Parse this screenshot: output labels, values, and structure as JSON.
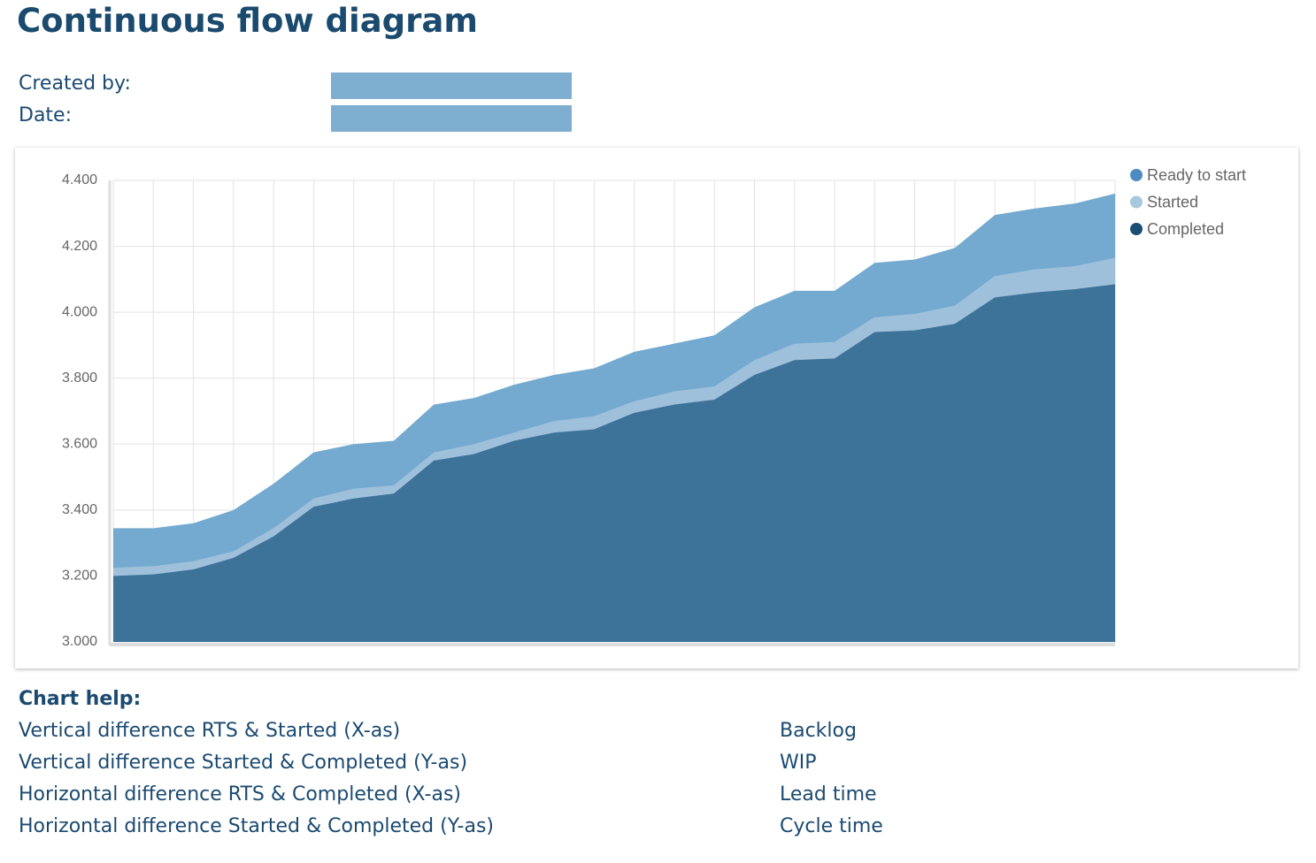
{
  "header": {
    "title": "Continuous flow diagram",
    "created_by_label": "Created by:",
    "date_label": "Date:"
  },
  "chart_data": {
    "type": "area",
    "categories": [
      null,
      null,
      null,
      null,
      null,
      null,
      null,
      null,
      null,
      null,
      null,
      null,
      null,
      null,
      null,
      null,
      null,
      null,
      null,
      null,
      null,
      null,
      null,
      null,
      null,
      null
    ],
    "series": [
      {
        "name": "Ready to start",
        "color": "#74aacf",
        "legend_color": "#4b8dc2",
        "values": [
          3345,
          3345,
          3360,
          3400,
          3480,
          3575,
          3600,
          3610,
          3720,
          3740,
          3780,
          3810,
          3830,
          3880,
          3905,
          3930,
          4015,
          4065,
          4065,
          4150,
          4160,
          4195,
          4295,
          4315,
          4330,
          4360
        ]
      },
      {
        "name": "Started",
        "color": "#9fc0db",
        "legend_color": "#a8c8de",
        "values": [
          3225,
          3230,
          3245,
          3275,
          3345,
          3435,
          3465,
          3475,
          3575,
          3600,
          3635,
          3670,
          3685,
          3730,
          3760,
          3775,
          3855,
          3905,
          3910,
          3985,
          3995,
          4020,
          4110,
          4130,
          4140,
          4165
        ]
      },
      {
        "name": "Completed",
        "color": "#3d7399",
        "legend_color": "#1a4e74",
        "values": [
          3200,
          3205,
          3220,
          3255,
          3320,
          3410,
          3435,
          3450,
          3550,
          3570,
          3610,
          3635,
          3645,
          3695,
          3720,
          3735,
          3810,
          3855,
          3860,
          3940,
          3945,
          3965,
          4045,
          4060,
          4070,
          4085
        ]
      }
    ],
    "ylim": [
      3000,
      4400
    ],
    "yticks": [
      {
        "value": 3000,
        "label": "3.000"
      },
      {
        "value": 3200,
        "label": "3.200"
      },
      {
        "value": 3400,
        "label": "3.400"
      },
      {
        "value": 3600,
        "label": "3.600"
      },
      {
        "value": 3800,
        "label": "3.800"
      },
      {
        "value": 4000,
        "label": "4.000"
      },
      {
        "value": 4200,
        "label": "4.200"
      },
      {
        "value": 4400,
        "label": "4.400"
      }
    ],
    "grid": true,
    "legend": "top-right"
  },
  "help": {
    "title": "Chart help:",
    "rows": [
      [
        "Vertical difference RTS & Started (X-as)",
        "Backlog"
      ],
      [
        "Vertical difference Started & Completed (Y-as)",
        "WIP"
      ],
      [
        "Horizontal difference RTS & Completed (X-as)",
        "Lead time"
      ],
      [
        "Horizontal difference Started & Completed (Y-as)",
        "Cycle time"
      ]
    ]
  }
}
